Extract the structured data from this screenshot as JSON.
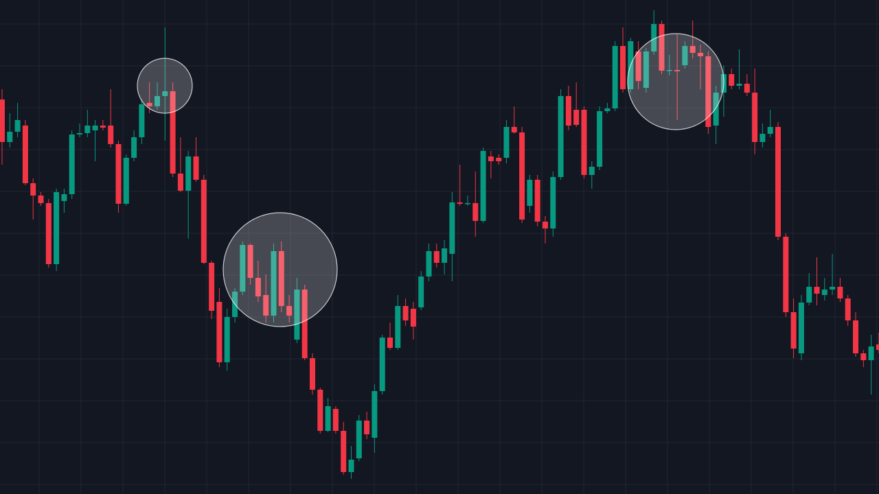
{
  "chart_data": {
    "type": "candlestick",
    "ylim": [
      0,
      720
    ],
    "grid": true,
    "up_color": "#089981",
    "down_color": "#f23645",
    "open": [
      575,
      513,
      528,
      537,
      453,
      435,
      424,
      335,
      427,
      437,
      524,
      526,
      530,
      537,
      537,
      510,
      423,
      490,
      520,
      570,
      565,
      580,
      587,
      467,
      442,
      492,
      458,
      337,
      280,
      192,
      258,
      295,
      363,
      315,
      290,
      260,
      354,
      274,
      225,
      298,
      198,
      152,
      92,
      124,
      92,
      32,
      52,
      107,
      82,
      150,
      228,
      213,
      274,
      270,
      272,
      317,
      354,
      337,
      350,
      425,
      423,
      424,
      398,
      492,
      490,
      490,
      535,
      527,
      420,
      458,
      397,
      387,
      462,
      580,
      560,
      560,
      465,
      477,
      558,
      562,
      653,
      590,
      645,
      592,
      645,
      685,
      617,
      618,
      625,
      653,
      643,
      638,
      537,
      585,
      612,
      595,
      598,
      585,
      513,
      525,
      535,
      375,
      265,
      205,
      279,
      302,
      290,
      298,
      302,
      285,
      253,
      205,
      195,
      218
    ],
    "high": [
      590,
      555,
      570,
      545,
      460,
      440,
      430,
      445,
      445,
      530,
      540,
      560,
      545,
      545,
      590,
      515,
      495,
      530,
      575,
      600,
      600,
      680,
      600,
      520,
      500,
      520,
      465,
      340,
      300,
      270,
      300,
      368,
      365,
      340,
      320,
      365,
      368,
      290,
      315,
      305,
      205,
      155,
      140,
      128,
      105,
      70,
      115,
      120,
      160,
      232,
      250,
      290,
      285,
      280,
      325,
      365,
      365,
      370,
      440,
      480,
      435,
      470,
      505,
      500,
      495,
      545,
      565,
      535,
      465,
      465,
      405,
      470,
      590,
      595,
      600,
      565,
      485,
      565,
      570,
      660,
      680,
      665,
      660,
      650,
      705,
      690,
      640,
      670,
      660,
      690,
      655,
      645,
      595,
      625,
      620,
      648,
      612,
      620,
      540,
      560,
      542,
      380,
      285,
      290,
      322,
      345,
      315,
      350,
      315,
      290,
      265,
      210,
      232,
      235
    ],
    "low": [
      480,
      505,
      520,
      450,
      400,
      420,
      330,
      325,
      410,
      430,
      520,
      520,
      485,
      530,
      505,
      410,
      420,
      485,
      510,
      555,
      560,
      515,
      462,
      440,
      372,
      455,
      335,
      255,
      185,
      180,
      250,
      290,
      305,
      280,
      250,
      250,
      265,
      250,
      220,
      195,
      145,
      88,
      90,
      88,
      28,
      22,
      48,
      80,
      60,
      145,
      210,
      210,
      245,
      225,
      268,
      310,
      330,
      320,
      310,
      420,
      420,
      375,
      395,
      460,
      480,
      482,
      525,
      395,
      410,
      390,
      365,
      375,
      458,
      530,
      535,
      460,
      445,
      472,
      555,
      558,
      585,
      585,
      590,
      585,
      640,
      612,
      610,
      545,
      620,
      635,
      590,
      525,
      510,
      550,
      590,
      590,
      580,
      495,
      505,
      520,
      370,
      258,
      198,
      195,
      275,
      275,
      282,
      290,
      280,
      245,
      200,
      185,
      145,
      205
    ],
    "close": [
      513,
      528,
      545,
      453,
      435,
      424,
      335,
      440,
      437,
      524,
      526,
      537,
      537,
      534,
      510,
      423,
      490,
      520,
      568,
      565,
      580,
      587,
      467,
      442,
      492,
      458,
      337,
      267,
      192,
      258,
      295,
      363,
      315,
      288,
      260,
      354,
      274,
      260,
      298,
      198,
      152,
      92,
      128,
      92,
      32,
      50,
      107,
      87,
      150,
      228,
      213,
      274,
      253,
      244,
      317,
      354,
      337,
      358,
      425,
      423,
      424,
      398,
      500,
      485,
      485,
      535,
      527,
      400,
      458,
      397,
      387,
      462,
      580,
      537,
      538,
      465,
      477,
      558,
      562,
      653,
      590,
      660,
      602,
      645,
      685,
      617,
      618,
      616,
      653,
      643,
      638,
      535,
      585,
      612,
      595,
      598,
      585,
      513,
      525,
      535,
      375,
      265,
      212,
      279,
      302,
      292,
      298,
      302,
      285,
      253,
      205,
      195,
      215,
      210
    ]
  }
}
